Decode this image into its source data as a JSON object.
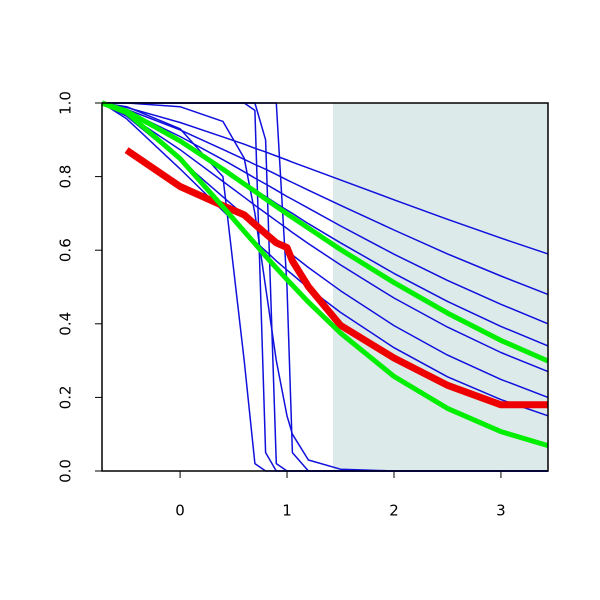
{
  "chart_data": {
    "type": "line",
    "x": [
      -0.73,
      -0.5,
      0,
      0.4,
      0.6,
      0.7,
      0.8,
      0.9,
      1,
      1.05,
      1.2,
      1.5,
      2,
      2.5,
      3,
      3.44
    ],
    "xlim": [
      -0.73,
      3.44
    ],
    "ylim": [
      0,
      1
    ],
    "xticks": [
      0,
      1,
      2,
      3
    ],
    "yticks": [
      {
        "value": 0,
        "label": "0.0"
      },
      0.2,
      0.4,
      0.6,
      0.8,
      {
        "value": 1,
        "label": "1.0"
      }
    ],
    "shade_from": 1.43,
    "shade_color": "#ddeaea",
    "series": [
      {
        "color": "#1010dd",
        "line_width": 1.5,
        "values": [
          1,
          0.988,
          0.947,
          0.908,
          0.888,
          0.877,
          0.867,
          0.856,
          0.845,
          0.839,
          0.823,
          0.791,
          0.737,
          0.684,
          0.633,
          0.59
        ]
      },
      {
        "color": "#1010dd",
        "line_width": 1.5,
        "values": [
          1,
          0.983,
          0.927,
          0.874,
          0.847,
          0.833,
          0.82,
          0.806,
          0.791,
          0.784,
          0.763,
          0.722,
          0.655,
          0.59,
          0.53,
          0.48
        ]
      },
      {
        "color": "#1010dd",
        "line_width": 1.5,
        "values": [
          1,
          0.979,
          0.909,
          0.846,
          0.813,
          0.796,
          0.78,
          0.763,
          0.746,
          0.738,
          0.714,
          0.666,
          0.589,
          0.518,
          0.453,
          0.4
        ]
      },
      {
        "color": "#1010dd",
        "line_width": 1.5,
        "values": [
          1,
          0.975,
          0.894,
          0.821,
          0.784,
          0.764,
          0.746,
          0.727,
          0.709,
          0.7,
          0.672,
          0.62,
          0.537,
          0.461,
          0.393,
          0.34
        ]
      },
      {
        "color": "#1010dd",
        "line_width": 1.5,
        "values": [
          1,
          0.97,
          0.873,
          0.787,
          0.744,
          0.722,
          0.701,
          0.68,
          0.659,
          0.648,
          0.618,
          0.56,
          0.47,
          0.391,
          0.322,
          0.27
        ]
      },
      {
        "color": "#1010dd",
        "line_width": 1.5,
        "values": [
          1,
          0.964,
          0.846,
          0.745,
          0.695,
          0.67,
          0.646,
          0.622,
          0.598,
          0.587,
          0.553,
          0.49,
          0.395,
          0.315,
          0.249,
          0.2
        ]
      },
      {
        "color": "#1010dd",
        "line_width": 1.5,
        "values": [
          1,
          0.957,
          0.821,
          0.707,
          0.651,
          0.624,
          0.598,
          0.571,
          0.546,
          0.534,
          0.497,
          0.431,
          0.335,
          0.256,
          0.194,
          0.15
        ]
      },
      {
        "color": "#1010dd",
        "line_width": 1.5,
        "values": [
          1,
          0.99,
          0.93,
          0.8,
          0.3,
          0.02,
          0,
          0,
          0,
          0,
          0,
          0,
          0,
          0,
          0,
          0
        ]
      },
      {
        "color": "#1010dd",
        "line_width": 1.5,
        "values": [
          1,
          1,
          1,
          1,
          1,
          0.98,
          0.05,
          0,
          0,
          0,
          0,
          0,
          0,
          0,
          0,
          0
        ]
      },
      {
        "color": "#1010dd",
        "line_width": 1.5,
        "values": [
          1,
          1,
          1,
          1,
          1,
          1,
          0.9,
          0.02,
          0,
          0,
          0,
          0,
          0,
          0,
          0,
          0
        ]
      },
      {
        "color": "#1010dd",
        "line_width": 1.5,
        "values": [
          1,
          1,
          1,
          1,
          1,
          1,
          1,
          1,
          0.5,
          0.05,
          0,
          0,
          0,
          0,
          0,
          0
        ]
      },
      {
        "color": "#1010dd",
        "line_width": 1.5,
        "values": [
          1,
          1,
          0.99,
          0.95,
          0.85,
          0.7,
          0.5,
          0.3,
          0.15,
          0.1,
          0.03,
          0.005,
          0,
          0,
          0,
          0
        ]
      },
      {
        "color": "#ee0000",
        "line_width": 7,
        "values": [
          null,
          0.872,
          0.773,
          0.721,
          0.696,
          0.67,
          0.645,
          0.62,
          0.607,
          0.571,
          0.501,
          0.396,
          0.307,
          0.233,
          0.18,
          0.18
        ]
      },
      {
        "color": "#00ee00",
        "line_width": 5,
        "values": [
          1,
          0.978,
          0.897,
          0.82,
          0.78,
          0.76,
          0.739,
          0.719,
          0.699,
          0.689,
          0.66,
          0.602,
          0.512,
          0.429,
          0.355,
          0.299
        ]
      },
      {
        "color": "#00ee00",
        "line_width": 5,
        "values": [
          1,
          0.974,
          0.849,
          0.718,
          0.651,
          0.618,
          0.584,
          0.552,
          0.52,
          0.505,
          0.459,
          0.375,
          0.257,
          0.17,
          0.107,
          0.069
        ]
      }
    ]
  }
}
